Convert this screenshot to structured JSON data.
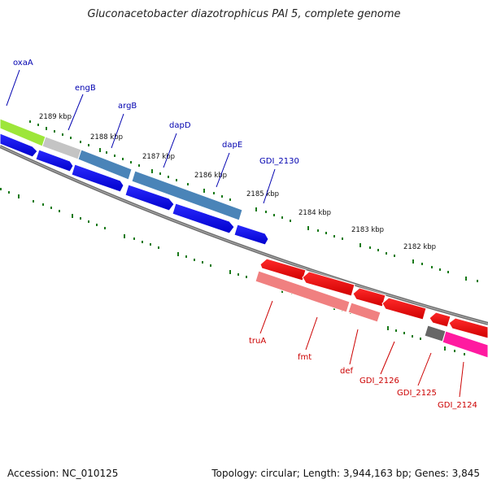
{
  "title": "Gluconacetobacter diazotrophicus PAl 5, complete genome",
  "footer": {
    "accession": "Accession: NC_010125",
    "summary": "Topology: circular; Length: 3,944,163 bp; Genes: 3,845"
  },
  "colors": {
    "backbone": "#7a7a7a",
    "tick": "#1a7a1a",
    "forward_label": "#0000b0",
    "reverse_label": "#cc0000"
  },
  "kbp_labels": [
    "2189 kbp",
    "2188 kbp",
    "2187 kbp",
    "2186 kbp",
    "2185 kbp",
    "2184 kbp",
    "2183 kbp",
    "2182 kbp"
  ],
  "forward_genes": [
    "oxaA",
    "engB",
    "argB",
    "dapD",
    "dapE",
    "GDI_2130"
  ],
  "reverse_genes": [
    "truA",
    "fmt",
    "def",
    "GDI_2126",
    "GDI_2125",
    "GDI_2124"
  ]
}
